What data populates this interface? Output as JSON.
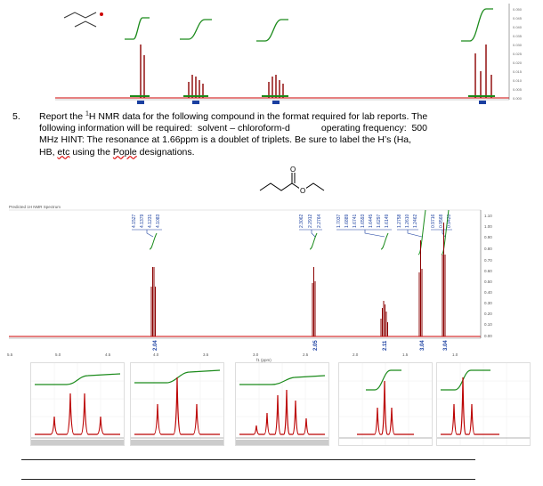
{
  "question": {
    "number": "5.",
    "line1": "Report the ",
    "sup": "1",
    "line1b": "H NMR data for the following compound in the format required for lab reports.  The",
    "line2": "following information will be required:  solvent – chloroform-d            operating frequency:  500",
    "line3": "MHz   HINT:  The resonance at 1.66ppm is a doublet of triplets.  Be sure to label the H’s (Ha,",
    "line4a": "HB, ",
    "line4b": "etc",
    "line4c": " using the ",
    "line4d": "Pople",
    "line4e": " designations."
  },
  "main_spectrum": {
    "title": "Predicted 1H NMR Spectrum",
    "x_ticks": [
      "5.5",
      "5.0",
      "4.5",
      "4.0",
      "3.5",
      "3.0",
      "2.5",
      "2.0",
      "1.5",
      "1.0"
    ],
    "x_unit": "f1 (ppm)",
    "y_ticks": [
      "1.10",
      "1.00",
      "0.90",
      "0.80",
      "0.70",
      "0.60",
      "0.50",
      "0.40",
      "0.30",
      "0.20",
      "0.10",
      "0.00"
    ],
    "peak_labels": {
      "group1": [
        "4.1527",
        "4.1379",
        "4.1231",
        "4.1083"
      ],
      "group2": [
        "2.3062",
        "2.2912",
        "2.2764"
      ],
      "group3": [
        "1.7037",
        "1.6889",
        "1.6741",
        "1.6593",
        "1.6445",
        "1.6297",
        "1.6149"
      ],
      "group4": [
        "1.2758",
        "1.2610",
        "1.2462"
      ],
      "group5": [
        "0.9716",
        "0.9568",
        "0.9420"
      ]
    },
    "integrals": [
      "2.04",
      "2.05",
      "2.11",
      "3.04",
      "3.04"
    ]
  },
  "colors": {
    "spectrum": "#8b0000",
    "integral": "#1a8a1a",
    "baseline": "#cc0000",
    "labels": "#1a3fa0"
  }
}
